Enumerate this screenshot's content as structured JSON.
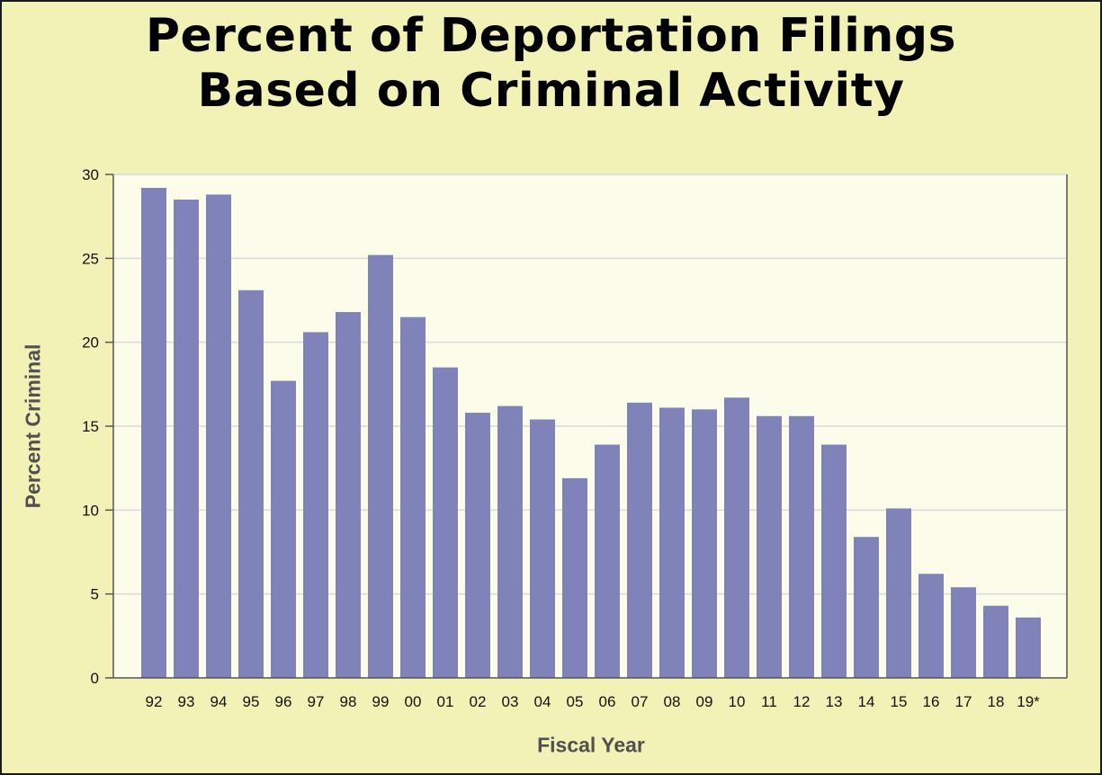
{
  "chart_data": {
    "type": "bar",
    "title": "Percent of Deportation Filings Based on Criminal Activity",
    "title_lines": [
      "Percent of Deportation Filings",
      "Based on Criminal Activity"
    ],
    "xlabel": "Fiscal Year",
    "ylabel": "Percent Criminal",
    "ylim": [
      0,
      30
    ],
    "yticks": [
      0,
      5,
      10,
      15,
      20,
      25,
      30
    ],
    "grid": "horizontal",
    "categories": [
      "92",
      "93",
      "94",
      "95",
      "96",
      "97",
      "98",
      "99",
      "00",
      "01",
      "02",
      "03",
      "04",
      "05",
      "06",
      "07",
      "08",
      "09",
      "10",
      "11",
      "12",
      "13",
      "14",
      "15",
      "16",
      "17",
      "18",
      "19*"
    ],
    "values": [
      29.2,
      28.5,
      28.8,
      23.1,
      17.7,
      20.6,
      21.8,
      25.2,
      21.5,
      18.5,
      15.8,
      16.2,
      15.4,
      11.9,
      13.9,
      16.4,
      16.1,
      16.0,
      16.7,
      15.6,
      15.6,
      13.9,
      8.4,
      10.1,
      6.2,
      5.4,
      4.3,
      3.6
    ],
    "colors": {
      "bar": "#7f83b9",
      "plot_bg": "#fcfceb",
      "page_bg": "#f3f2b6",
      "grid": "#d9d9d6",
      "axis": "#555555"
    }
  }
}
